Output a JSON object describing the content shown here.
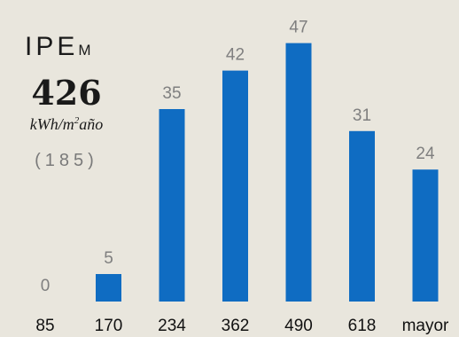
{
  "kpi": {
    "title_main": "IPE",
    "title_sub": "M",
    "value": "426",
    "unit_prefix": "kWh/m",
    "unit_sup": "2",
    "unit_suffix": "año",
    "reference": "(185)"
  },
  "colors": {
    "bar": "#0f6cc2",
    "background": "#e9e6dd",
    "data_label": "#7f7f7f",
    "tick_label": "#111111"
  },
  "chart_data": {
    "type": "bar",
    "categories": [
      "85",
      "170",
      "234",
      "362",
      "490",
      "618",
      "mayor"
    ],
    "values": [
      0,
      5,
      35,
      42,
      47,
      31,
      24
    ],
    "title": "",
    "xlabel": "",
    "ylabel": "",
    "ylim": [
      0,
      50
    ],
    "grid": false,
    "legend": "none",
    "data_labels": true
  }
}
